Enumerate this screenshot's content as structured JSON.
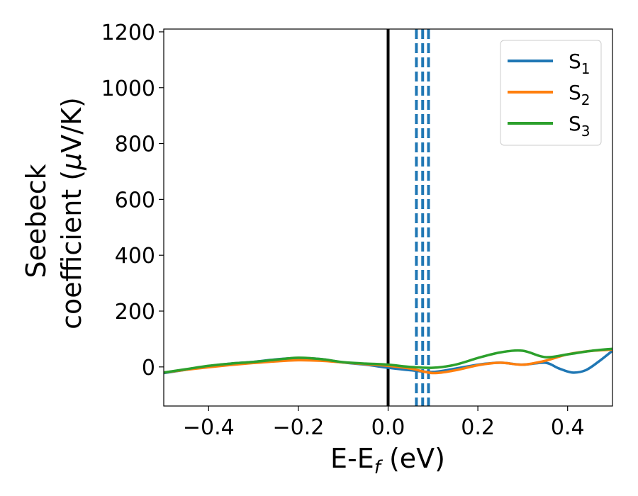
{
  "chart_data": {
    "type": "line",
    "xlabel": {
      "base": "E-E",
      "sub": "f",
      "tail": " (eV)"
    },
    "ylabel": {
      "line1": "Seebeck",
      "line2": "coefficient  (",
      "mu": "μ",
      "tail": "V/K)"
    },
    "xlim": [
      -0.5,
      0.5
    ],
    "ylim": [
      -140,
      1210
    ],
    "xticks": [
      -0.4,
      -0.2,
      0.0,
      0.2,
      0.4
    ],
    "xtick_labels": [
      "−0.4",
      "−0.2",
      "0.0",
      "0.2",
      "0.4"
    ],
    "yticks": [
      0,
      200,
      400,
      600,
      800,
      1000,
      1200
    ],
    "ytick_labels": [
      "0",
      "200",
      "400",
      "600",
      "800",
      "1000",
      "1200"
    ],
    "legend_position": "top-right",
    "vlines": [
      {
        "x": 0.0,
        "color": "#000000",
        "style": "solid"
      },
      {
        "x": 0.063,
        "color": "#1f77b4",
        "style": "dashed"
      },
      {
        "x": 0.077,
        "color": "#1f77b4",
        "style": "dashed"
      },
      {
        "x": 0.09,
        "color": "#1f77b4",
        "style": "dashed"
      }
    ],
    "series": [
      {
        "name": "S",
        "sub": "1",
        "color": "#1f77b4",
        "x": [
          -0.5,
          -0.45,
          -0.4,
          -0.35,
          -0.3,
          -0.25,
          -0.2,
          -0.15,
          -0.1,
          -0.05,
          0.0,
          0.05,
          0.1,
          0.15,
          0.2,
          0.25,
          0.3,
          0.35,
          0.38,
          0.41,
          0.44,
          0.47,
          0.5
        ],
        "y": [
          -22,
          -10,
          3,
          12,
          18,
          27,
          32,
          28,
          16,
          8,
          -3,
          -12,
          -18,
          -6,
          8,
          15,
          8,
          15,
          -5,
          -20,
          -12,
          20,
          58
        ]
      },
      {
        "name": "S",
        "sub": "2",
        "color": "#ff7f0e",
        "x": [
          -0.5,
          -0.45,
          -0.4,
          -0.35,
          -0.3,
          -0.25,
          -0.2,
          -0.15,
          -0.1,
          -0.05,
          0.0,
          0.05,
          0.1,
          0.15,
          0.2,
          0.25,
          0.3,
          0.35,
          0.4,
          0.45,
          0.5
        ],
        "y": [
          -20,
          -10,
          -1,
          7,
          14,
          20,
          24,
          22,
          16,
          10,
          4,
          -6,
          -22,
          -12,
          6,
          15,
          8,
          22,
          45,
          57,
          62
        ]
      },
      {
        "name": "S",
        "sub": "3",
        "color": "#2ca02c",
        "x": [
          -0.5,
          -0.45,
          -0.4,
          -0.35,
          -0.3,
          -0.25,
          -0.2,
          -0.15,
          -0.1,
          -0.05,
          0.0,
          0.05,
          0.1,
          0.15,
          0.2,
          0.25,
          0.3,
          0.35,
          0.4,
          0.45,
          0.5
        ],
        "y": [
          -20,
          -8,
          4,
          12,
          18,
          26,
          33,
          28,
          17,
          12,
          8,
          0,
          -3,
          8,
          32,
          52,
          58,
          35,
          45,
          57,
          65
        ]
      }
    ]
  }
}
